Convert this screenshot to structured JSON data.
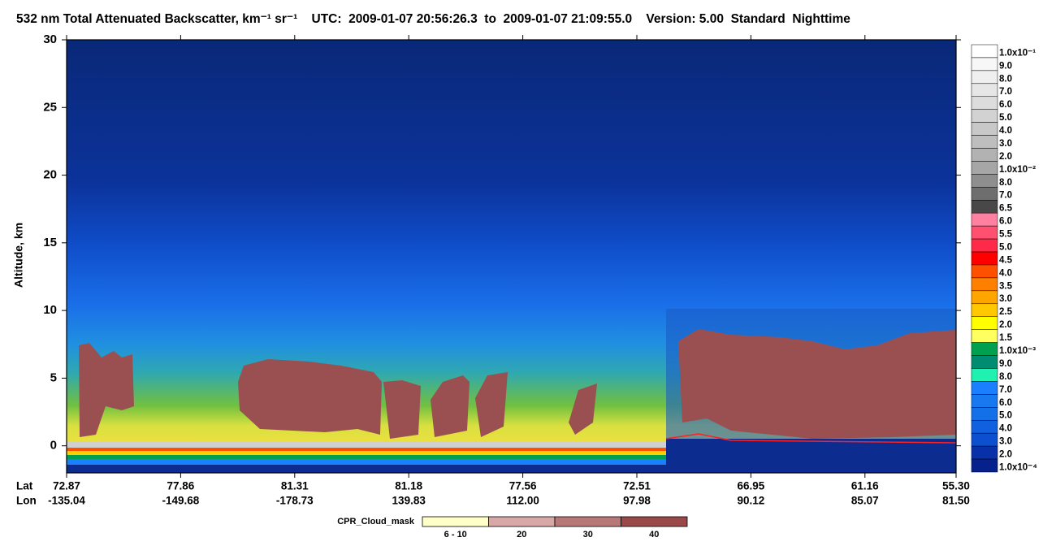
{
  "chart_data": {
    "type": "heatmap",
    "title": "532 nm Total Attenuated Backscatter, km⁻¹ sr⁻¹    UTC:  2009-01-07 20:56:26.3  to  2009-01-07 21:09:55.0    Version: 5.00  Standard  Nighttime",
    "ylabel": "Altitude, km",
    "ylim": [
      -2,
      30
    ],
    "yticks": [
      0,
      5,
      10,
      15,
      20,
      25,
      30
    ],
    "row_labels": [
      "Lat",
      "Lon"
    ],
    "lat": [
      "72.87",
      "77.86",
      "81.31",
      "81.18",
      "77.56",
      "72.51",
      "66.95",
      "61.16",
      "55.30"
    ],
    "lon": [
      "-135.04",
      "-149.68",
      "-178.73",
      "139.83",
      "112.00",
      "97.98",
      "90.12",
      "85.07",
      "81.50"
    ],
    "colorbar": {
      "labels": [
        "1.0x10⁻¹",
        "9.0",
        "8.0",
        "7.0",
        "6.0",
        "5.0",
        "4.0",
        "3.0",
        "2.0",
        "1.0x10⁻²",
        "8.0",
        "7.0",
        "6.5",
        "6.0",
        "5.5",
        "5.0",
        "4.5",
        "4.0",
        "3.5",
        "3.0",
        "2.5",
        "2.0",
        "1.5",
        "1.0x10⁻³",
        "9.0",
        "8.0",
        "7.0",
        "6.0",
        "5.0",
        "4.0",
        "3.0",
        "2.0",
        "1.0x10⁻⁴"
      ],
      "colors": [
        "#ffffff",
        "#f7f7f7",
        "#efefef",
        "#e6e6e6",
        "#dcdcdc",
        "#d2d2d2",
        "#c8c8c8",
        "#bebebe",
        "#b2b2b2",
        "#a6a6a6",
        "#8e8e8e",
        "#6e6e6e",
        "#484848",
        "#ff80a0",
        "#ff5070",
        "#ff2a48",
        "#ff0000",
        "#ff5000",
        "#ff8000",
        "#ffa500",
        "#ffc800",
        "#ffff00",
        "#ffff60",
        "#00a050",
        "#008c70",
        "#20f0b0",
        "#1a80ff",
        "#1878f0",
        "#1470e8",
        "#1060e0",
        "#0c50d0",
        "#0830a8",
        "#06208c"
      ]
    },
    "cloud_mask": {
      "title": "CPR_Cloud_mask",
      "labels": [
        "6 - 10",
        "20",
        "30",
        "40"
      ],
      "colors": [
        "#ffffc8",
        "#d8a8a8",
        "#b87878",
        "#9a4848"
      ]
    }
  }
}
